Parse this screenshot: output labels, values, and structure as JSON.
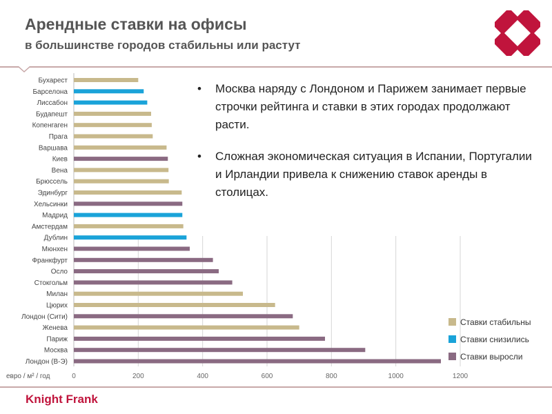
{
  "header": {
    "title": "Арендные ставки на офисы",
    "subtitle": "в большинстве городов стабильны или растут"
  },
  "notes": [
    "Москва наряду с Лондоном и Парижем занимает первые строчки рейтинга и ставки в этих городах продолжают расти.",
    "Сложная экономическая ситуация в Испании, Португалии и Ирландии привела к снижению ставок аренды в столицах."
  ],
  "footer": {
    "brand": "Knight Frank"
  },
  "colors": {
    "stable": "#c8b98c",
    "down": "#1aa3d9",
    "up": "#8a6a82",
    "brand_red": "#c0143c"
  },
  "chart_data": {
    "type": "bar",
    "orientation": "horizontal",
    "unit_label": "евро / м² / год",
    "xlim": [
      0,
      1200
    ],
    "xticks": [
      "0",
      "200",
      "400",
      "600",
      "800",
      "1000",
      "1200"
    ],
    "grid": true,
    "legend_position": "bottom-right",
    "legend": [
      {
        "key": "stable",
        "label": "Ставки стабильны"
      },
      {
        "key": "down",
        "label": "Ставки снизились"
      },
      {
        "key": "up",
        "label": "Ставки выросли"
      }
    ],
    "categories": [
      "Бухарест",
      "Барселона",
      "Лиссабон",
      "Будапешт",
      "Копенгаген",
      "Прага",
      "Варшава",
      "Киев",
      "Вена",
      "Брюссель",
      "Эдинбург",
      "Хельсинки",
      "Мадрид",
      "Амстердам",
      "Дублин",
      "Мюнхен",
      "Франкфурт",
      "Осло",
      "Стокгольм",
      "Милан",
      "Цюрих",
      "Лондон (Сити)",
      "Женева",
      "Париж",
      "Москва",
      "Лондон (В-Э)"
    ],
    "values": [
      200,
      217,
      228,
      240,
      242,
      245,
      288,
      292,
      294,
      295,
      335,
      337,
      337,
      340,
      350,
      360,
      432,
      450,
      492,
      525,
      625,
      680,
      700,
      780,
      905,
      1140
    ],
    "status": [
      "stable",
      "down",
      "down",
      "stable",
      "stable",
      "stable",
      "stable",
      "up",
      "stable",
      "stable",
      "stable",
      "up",
      "down",
      "stable",
      "down",
      "up",
      "up",
      "up",
      "up",
      "stable",
      "stable",
      "up",
      "stable",
      "up",
      "up",
      "up"
    ]
  }
}
